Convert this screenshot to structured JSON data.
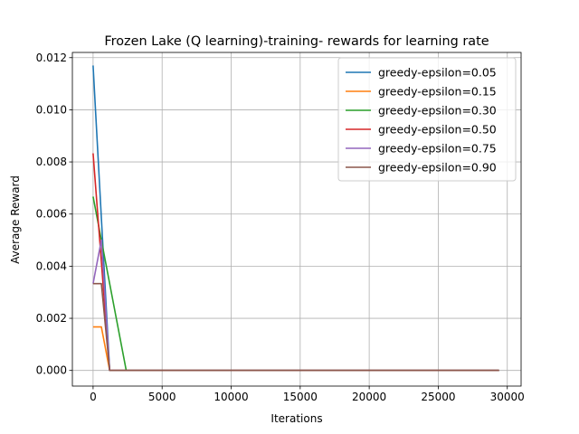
{
  "chart_data": {
    "type": "line",
    "title": "Frozen Lake (Q learning)-training- rewards for learning rate",
    "xlabel": "Iterations",
    "ylabel": "Average Reward",
    "xlim": [
      -1500,
      31000
    ],
    "ylim": [
      -0.0006,
      0.0122
    ],
    "xticks": [
      0,
      5000,
      10000,
      15000,
      20000,
      25000,
      30000
    ],
    "xtick_labels": [
      "0",
      "5000",
      "10000",
      "15000",
      "20000",
      "25000",
      "30000"
    ],
    "yticks": [
      0.0,
      0.002,
      0.004,
      0.006,
      0.008,
      0.01,
      0.012
    ],
    "ytick_labels": [
      "0.000",
      "0.002",
      "0.004",
      "0.006",
      "0.008",
      "0.010",
      "0.012"
    ],
    "grid": true,
    "legend_position": "top-right",
    "series": [
      {
        "name": "greedy-epsilon=0.05",
        "color": "#1f77b4",
        "x": [
          0,
          1200,
          29400
        ],
        "y": [
          0.0117,
          0.0,
          0.0
        ]
      },
      {
        "name": "greedy-epsilon=0.15",
        "color": "#ff7f0e",
        "x": [
          0,
          600,
          1200,
          29400
        ],
        "y": [
          0.00167,
          0.00167,
          0.0,
          0.0
        ]
      },
      {
        "name": "greedy-epsilon=0.30",
        "color": "#2ca02c",
        "x": [
          0,
          2400,
          29400
        ],
        "y": [
          0.00667,
          0.0,
          0.0
        ]
      },
      {
        "name": "greedy-epsilon=0.50",
        "color": "#d62728",
        "x": [
          0,
          1200,
          29400
        ],
        "y": [
          0.00833,
          0.0,
          0.0
        ]
      },
      {
        "name": "greedy-epsilon=0.75",
        "color": "#9467bd",
        "x": [
          0,
          600,
          1200,
          29400
        ],
        "y": [
          0.00333,
          0.005,
          0.0,
          0.0
        ]
      },
      {
        "name": "greedy-epsilon=0.90",
        "color": "#8c564b",
        "x": [
          0,
          600,
          1200,
          29400
        ],
        "y": [
          0.00333,
          0.00333,
          0.0,
          0.0
        ]
      }
    ]
  }
}
